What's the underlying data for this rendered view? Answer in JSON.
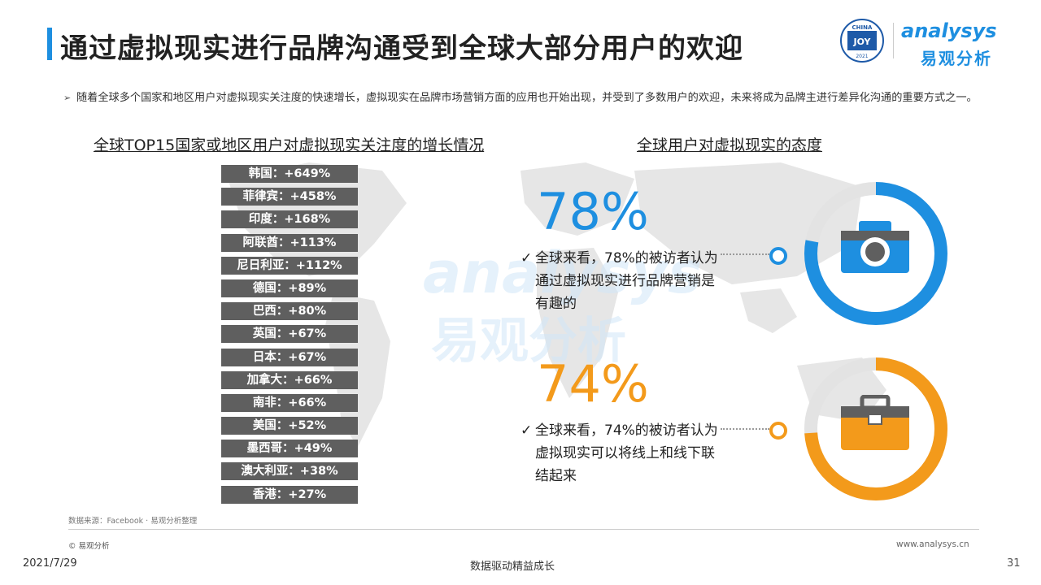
{
  "header": {
    "title": "通过虚拟现实进行品牌沟通受到全球大部分用户的欢迎",
    "logo": {
      "badge_top": "CHINA",
      "badge_mid": "JOY",
      "badge_year": "2021",
      "brand_en": "analysys",
      "brand_cn": "易观分析"
    }
  },
  "bullet": {
    "marker": "➢",
    "text": "随着全球多个国家和地区用户对虚拟现实关注度的快速增长，虚拟现实在品牌市场营销方面的应用也开始出现，并受到了多数用户的欢迎，未来将成为品牌主进行差异化沟通的重要方式之一。"
  },
  "left_chart": {
    "subtitle": "全球TOP15国家或地区用户对虚拟现实关注度的增长情况",
    "bar_color": "#5f5f5f",
    "items": [
      {
        "label": "韩国：+649%"
      },
      {
        "label": "菲律宾：+458%"
      },
      {
        "label": "印度：+168%"
      },
      {
        "label": "阿联酋：+113%"
      },
      {
        "label": "尼日利亚：+112%"
      },
      {
        "label": "德国：+89%"
      },
      {
        "label": "巴西：+80%"
      },
      {
        "label": "英国：+67%"
      },
      {
        "label": "日本：+67%"
      },
      {
        "label": "加拿大：+66%"
      },
      {
        "label": "南非：+66%"
      },
      {
        "label": "美国：+52%"
      },
      {
        "label": "墨西哥：+49%"
      },
      {
        "label": "澳大利亚：+38%"
      },
      {
        "label": "香港：+27%"
      }
    ]
  },
  "right_panel": {
    "subtitle": "全球用户对虚拟现实的态度",
    "stats": [
      {
        "percent": "78%",
        "value": 0.78,
        "color": "#1e8fe0",
        "check": "✓",
        "description": "全球来看，78%的被访者认为通过虚拟现实进行品牌营销是有趣的",
        "icon": "camera-icon"
      },
      {
        "percent": "74%",
        "value": 0.74,
        "color": "#f39a1b",
        "check": "✓",
        "description": "全球来看，74%的被访者认为虚拟现实可以将线上和线下联结起来",
        "icon": "briefcase-icon"
      }
    ]
  },
  "watermark": {
    "brand_en": "analysys",
    "brand_cn": "易观分析"
  },
  "footer": {
    "source": "数据来源：Facebook · 易观分析整理",
    "copyright": "© 易观分析",
    "website": "www.analysys.cn",
    "date": "2021/7/29",
    "slogan": "数据驱动精益成长",
    "page": "31"
  }
}
